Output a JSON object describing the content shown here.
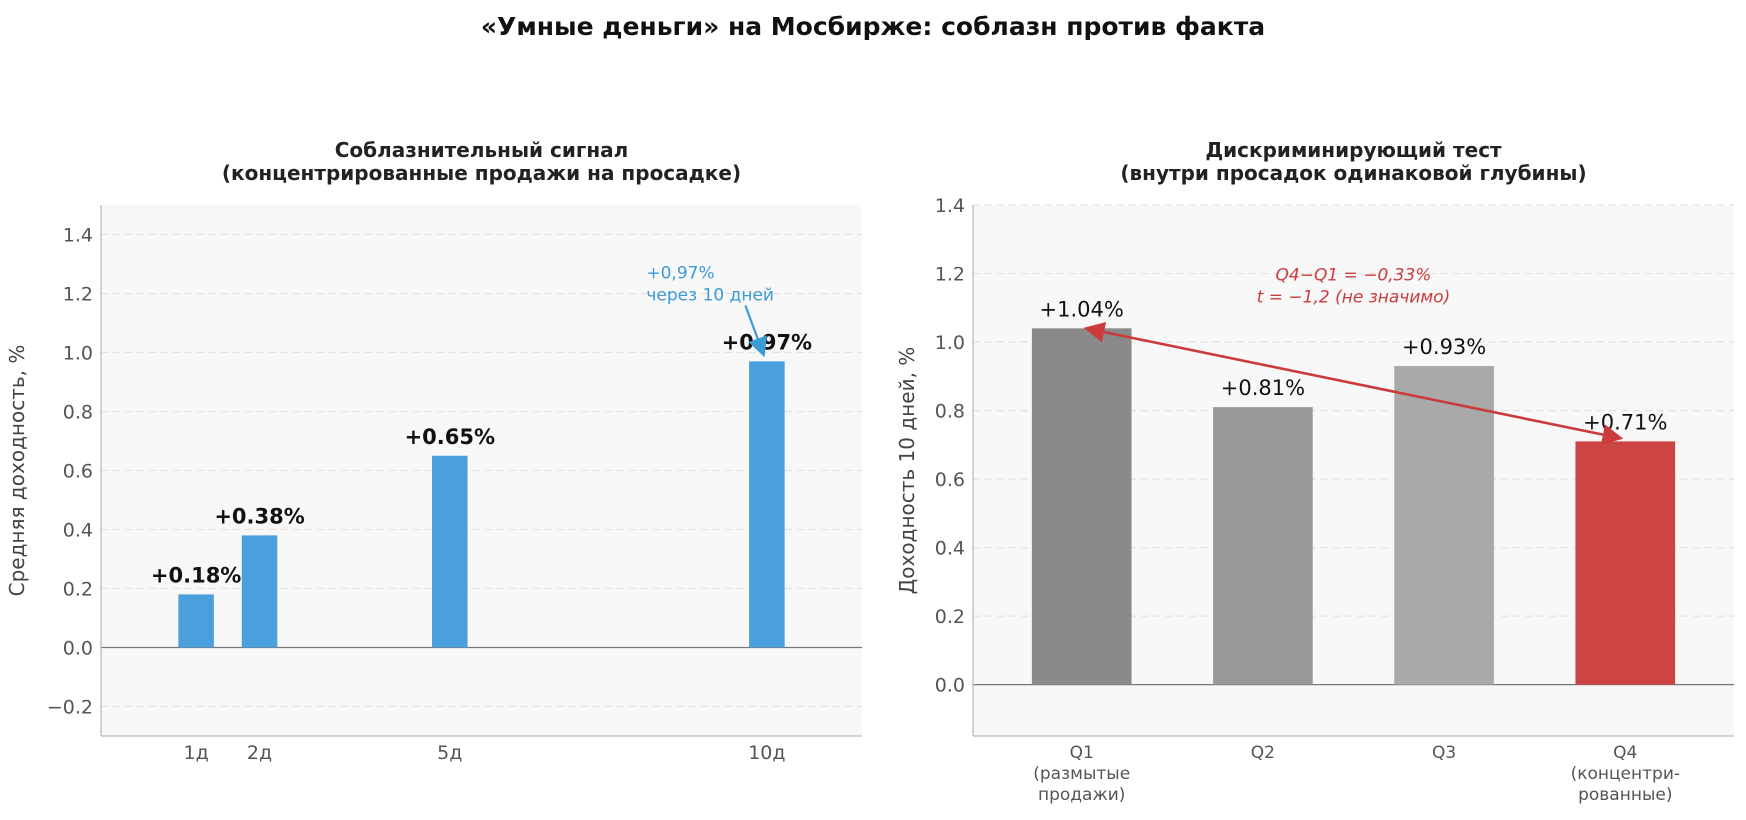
{
  "figure": {
    "title": "«Умные деньги» на Мосбирже: соблазн против факта"
  },
  "chart_data": [
    {
      "type": "bar",
      "title": "Соблазнительный сигнал",
      "subtitle": "(концентрированные продажи на просадке)",
      "ylabel": "Средняя доходность, %",
      "xlabel": "",
      "ylim": [
        -0.3,
        1.5
      ],
      "yticks": [
        -0.2,
        0.0,
        0.2,
        0.4,
        0.6,
        0.8,
        1.0,
        1.2,
        1.4
      ],
      "yticklabels": [
        "−0.2",
        "0.0",
        "0.2",
        "0.4",
        "0.6",
        "0.8",
        "1.0",
        "1.2",
        "1.4"
      ],
      "xlim": [
        -0.5,
        11.5
      ],
      "grid": "horizontal dashed",
      "bar_color": "#4a9fdc",
      "points": [
        {
          "x": 1,
          "category": "1д",
          "value": 0.18,
          "label": "+0.18%"
        },
        {
          "x": 2,
          "category": "2д",
          "value": 0.38,
          "label": "+0.38%"
        },
        {
          "x": 5,
          "category": "5д",
          "value": 0.65,
          "label": "+0.65%"
        },
        {
          "x": 10,
          "category": "10д",
          "value": 0.97,
          "label": "+0.97%"
        }
      ],
      "annotation": {
        "lines": [
          "+0,97%",
          "через 10 дней"
        ],
        "color": "#3c9ad8",
        "points_to": {
          "x": 10,
          "value": 0.97
        }
      }
    },
    {
      "type": "bar",
      "title": "Дискриминирующий тест",
      "subtitle": "(внутри просадок одинаковой глубины)",
      "ylabel": "Доходность 10 дней, %",
      "xlabel": "",
      "ylim": [
        -0.15,
        1.4
      ],
      "yticks": [
        0.0,
        0.2,
        0.4,
        0.6,
        0.8,
        1.0,
        1.2,
        1.4
      ],
      "yticklabels": [
        "0.0",
        "0.2",
        "0.4",
        "0.6",
        "0.8",
        "1.0",
        "1.2",
        "1.4"
      ],
      "grid": "horizontal dashed",
      "categories": [
        [
          "Q1",
          "(размытые",
          "продажи)"
        ],
        [
          "Q2"
        ],
        [
          "Q3"
        ],
        [
          "Q4",
          "(концентри-",
          "рованные)"
        ]
      ],
      "values": [
        1.04,
        0.81,
        0.93,
        0.71
      ],
      "labels": [
        "+1.04%",
        "+0.81%",
        "+0.93%",
        "+0.71%"
      ],
      "colors": [
        "#8a8a8a",
        "#999999",
        "#a9a9a9",
        "#cc4444"
      ],
      "annotation": {
        "lines": [
          "Q4−Q1 = −0,33%",
          "t = −1,2 (не значимо)"
        ],
        "color": "#cc3b3b",
        "arrow_between": [
          "Q1",
          "Q4"
        ]
      }
    }
  ]
}
